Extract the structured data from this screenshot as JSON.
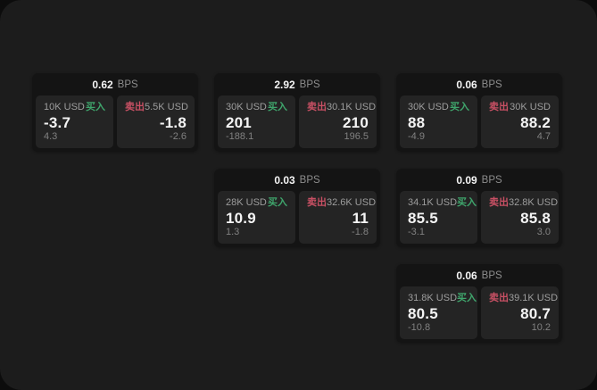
{
  "page": {
    "background": "#1c1c1c",
    "outer_background": "#0c0c0c"
  },
  "colors": {
    "buy_accent": "#3fa56c",
    "sell_accent": "#c85064",
    "card_background": "#141414",
    "panel_background": "#242424",
    "value_text": "#f4f4f4",
    "muted_text": "#8d8d8d"
  },
  "labels": {
    "bps_unit": "BPS",
    "buy": "买入",
    "sell": "卖出"
  },
  "cards": [
    {
      "bps": "0.62",
      "buy": {
        "amount": "10K USD",
        "value": "-3.7",
        "delta": "4.3"
      },
      "sell": {
        "amount": "5.5K USD",
        "value": "-1.8",
        "delta": "-2.6"
      }
    },
    {
      "bps": "2.92",
      "buy": {
        "amount": "30K USD",
        "value": "201",
        "delta": "-188.1"
      },
      "sell": {
        "amount": "30.1K USD",
        "value": "210",
        "delta": "196.5"
      }
    },
    {
      "bps": "0.06",
      "buy": {
        "amount": "30K USD",
        "value": "88",
        "delta": "-4.9"
      },
      "sell": {
        "amount": "30K USD",
        "value": "88.2",
        "delta": "4.7"
      }
    },
    {
      "bps": "0.03",
      "buy": {
        "amount": "28K USD",
        "value": "10.9",
        "delta": "1.3"
      },
      "sell": {
        "amount": "32.6K USD",
        "value": "11",
        "delta": "-1.8"
      }
    },
    {
      "bps": "0.09",
      "buy": {
        "amount": "34.1K USD",
        "value": "85.5",
        "delta": "-3.1"
      },
      "sell": {
        "amount": "32.8K USD",
        "value": "85.8",
        "delta": "3.0"
      }
    },
    {
      "bps": "0.06",
      "buy": {
        "amount": "31.8K USD",
        "value": "80.5",
        "delta": "-10.8"
      },
      "sell": {
        "amount": "39.1K USD",
        "value": "80.7",
        "delta": "10.2"
      }
    }
  ]
}
